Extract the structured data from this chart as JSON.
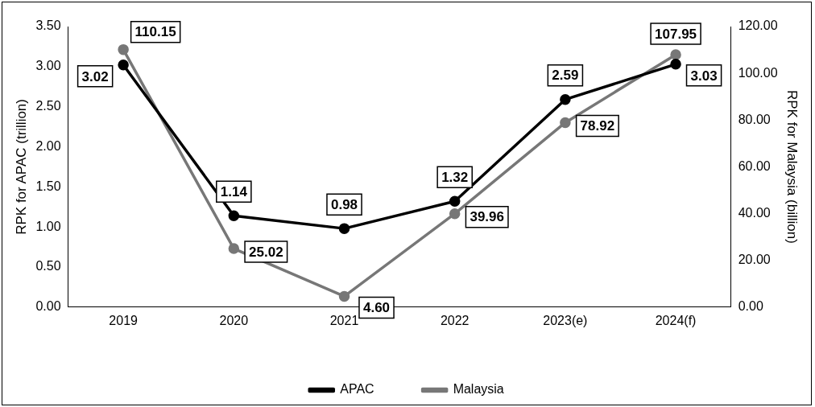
{
  "chart_data": {
    "type": "line",
    "categories": [
      "2019",
      "2020",
      "2021",
      "2022",
      "2023(e)",
      "2024(f)"
    ],
    "ylabel": "RPK for APAC (trillion)",
    "y2label": "RPK for Malaysia (billion)",
    "ylim": [
      0,
      3.5
    ],
    "yticks": [
      {
        "value": 0,
        "label": "0.00"
      },
      {
        "value": 0.5,
        "label": "0.50"
      },
      {
        "value": 1,
        "label": "1.00"
      },
      {
        "value": 1.5,
        "label": "1.50"
      },
      {
        "value": 2,
        "label": "2.00"
      },
      {
        "value": 2.5,
        "label": "2.50"
      },
      {
        "value": 3,
        "label": "3.00"
      },
      {
        "value": 3.5,
        "label": "3.50"
      }
    ],
    "y2lim": [
      0,
      120
    ],
    "y2ticks": [
      {
        "value": 0,
        "label": "0.00"
      },
      {
        "value": 20,
        "label": "20.00"
      },
      {
        "value": 40,
        "label": "40.00"
      },
      {
        "value": 60,
        "label": "60.00"
      },
      {
        "value": 80,
        "label": "80.00"
      },
      {
        "value": 100,
        "label": "100.00"
      },
      {
        "value": 120,
        "label": "120.00"
      }
    ],
    "series": [
      {
        "name": "APAC",
        "color": "#000000",
        "values": [
          3.02,
          1.14,
          0.98,
          1.32,
          2.59,
          3.03
        ],
        "value_labels": [
          "3.02",
          "1.14",
          "0.98",
          "1.32",
          "2.59",
          "3.03"
        ]
      },
      {
        "name": "Malaysia",
        "color": "#777777",
        "axis": "y2",
        "values": [
          110.15,
          25.02,
          4.6,
          39.96,
          78.92,
          107.95
        ],
        "value_labels": [
          "110.15",
          "25.02",
          "4.60",
          "39.96",
          "78.92",
          "107.95"
        ]
      }
    ],
    "grid": false,
    "legend": "bottom",
    "marker": "circle",
    "line_style": "solid"
  }
}
